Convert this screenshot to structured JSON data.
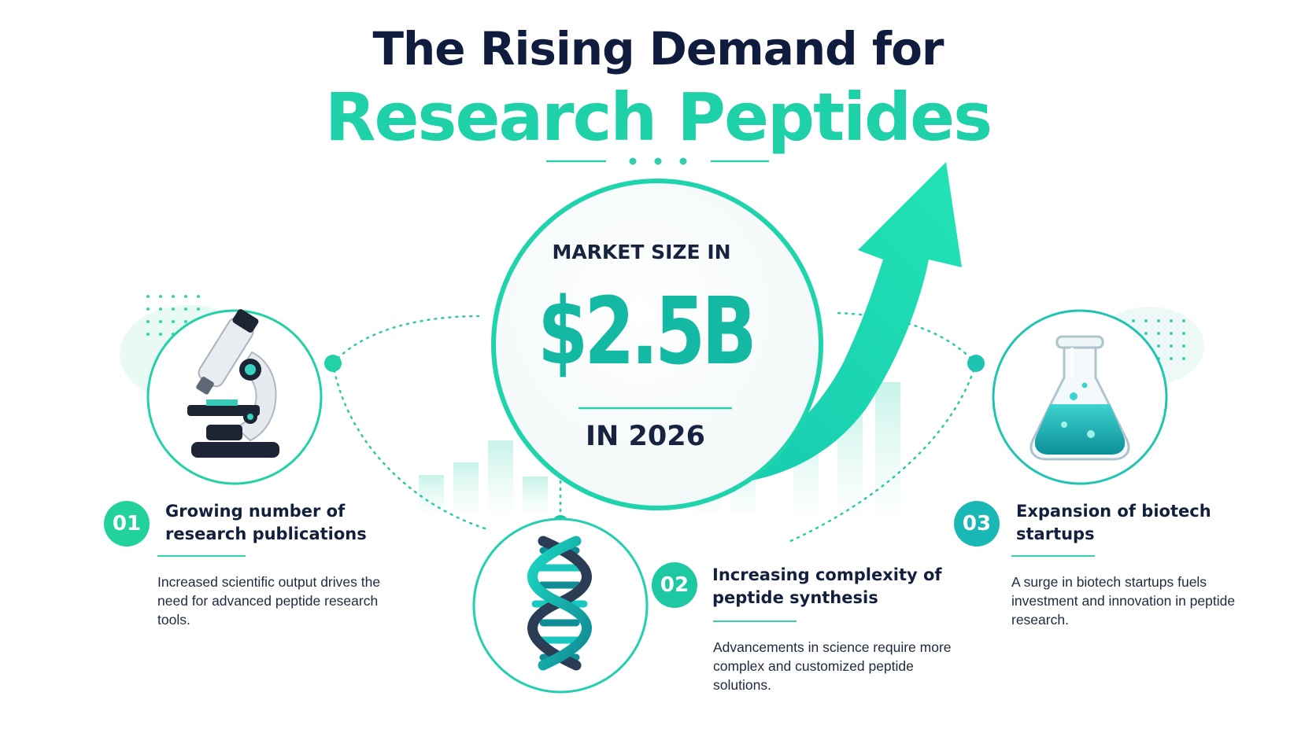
{
  "header": {
    "title_line1": "The Rising Demand for",
    "title_line2": "Research Peptides"
  },
  "market": {
    "label": "MARKET SIZE IN",
    "value": "$2.5B",
    "year": "IN 2026"
  },
  "items": [
    {
      "number": "01",
      "title": "Growing number of research publications",
      "description": "Increased scientific output drives the need for advanced peptide research tools.",
      "icon": "microscope-icon"
    },
    {
      "number": "02",
      "title": "Increasing complexity of peptide synthesis",
      "description": "Advancements in science require more complex and customized peptide solutions.",
      "icon": "dna-icon"
    },
    {
      "number": "03",
      "title": "Expansion of biotech startups",
      "description": "A surge in biotech startups fuels investment and innovation in peptide research.",
      "icon": "flask-icon"
    }
  ],
  "colors": {
    "accent": "#1fd1a8",
    "teal": "#13b9a2",
    "navy": "#15213b"
  }
}
